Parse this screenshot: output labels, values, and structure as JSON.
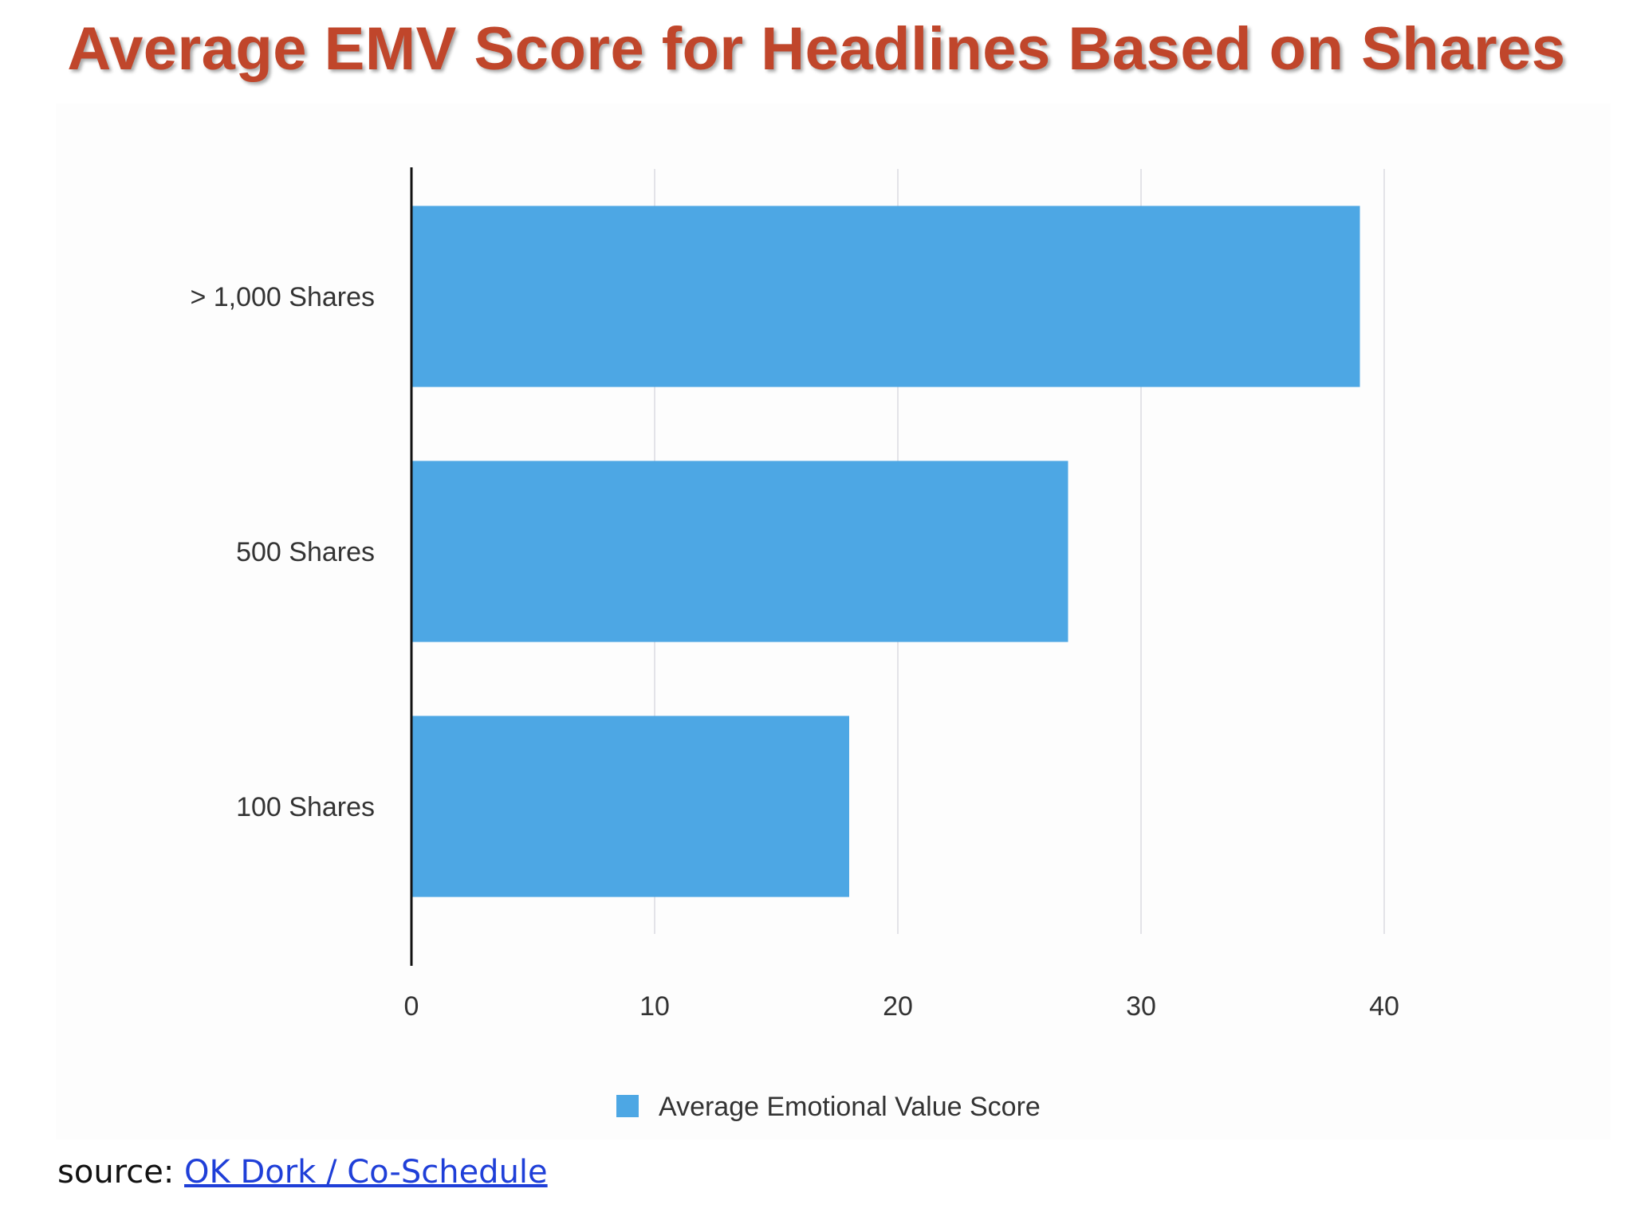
{
  "title": "Average EMV Score for Headlines Based on Shares",
  "colors": {
    "title": "#c0462b",
    "bar": "#4da7e4",
    "grid": "#e3e3e8",
    "axis": "#111111",
    "link": "#1f3fd8"
  },
  "source": {
    "prefix": "source:",
    "link_text": "OK Dork / Co-Schedule"
  },
  "chart_data": {
    "type": "bar",
    "orientation": "horizontal",
    "categories": [
      "> 1,000 Shares",
      "500 Shares",
      "100 Shares"
    ],
    "series": [
      {
        "name": "Average Emotional Value Score",
        "values": [
          39,
          27,
          18
        ]
      }
    ],
    "xlim": [
      0,
      40
    ],
    "xticks": [
      0,
      10,
      20,
      30,
      40
    ],
    "grid": true,
    "legend_position": "bottom"
  }
}
